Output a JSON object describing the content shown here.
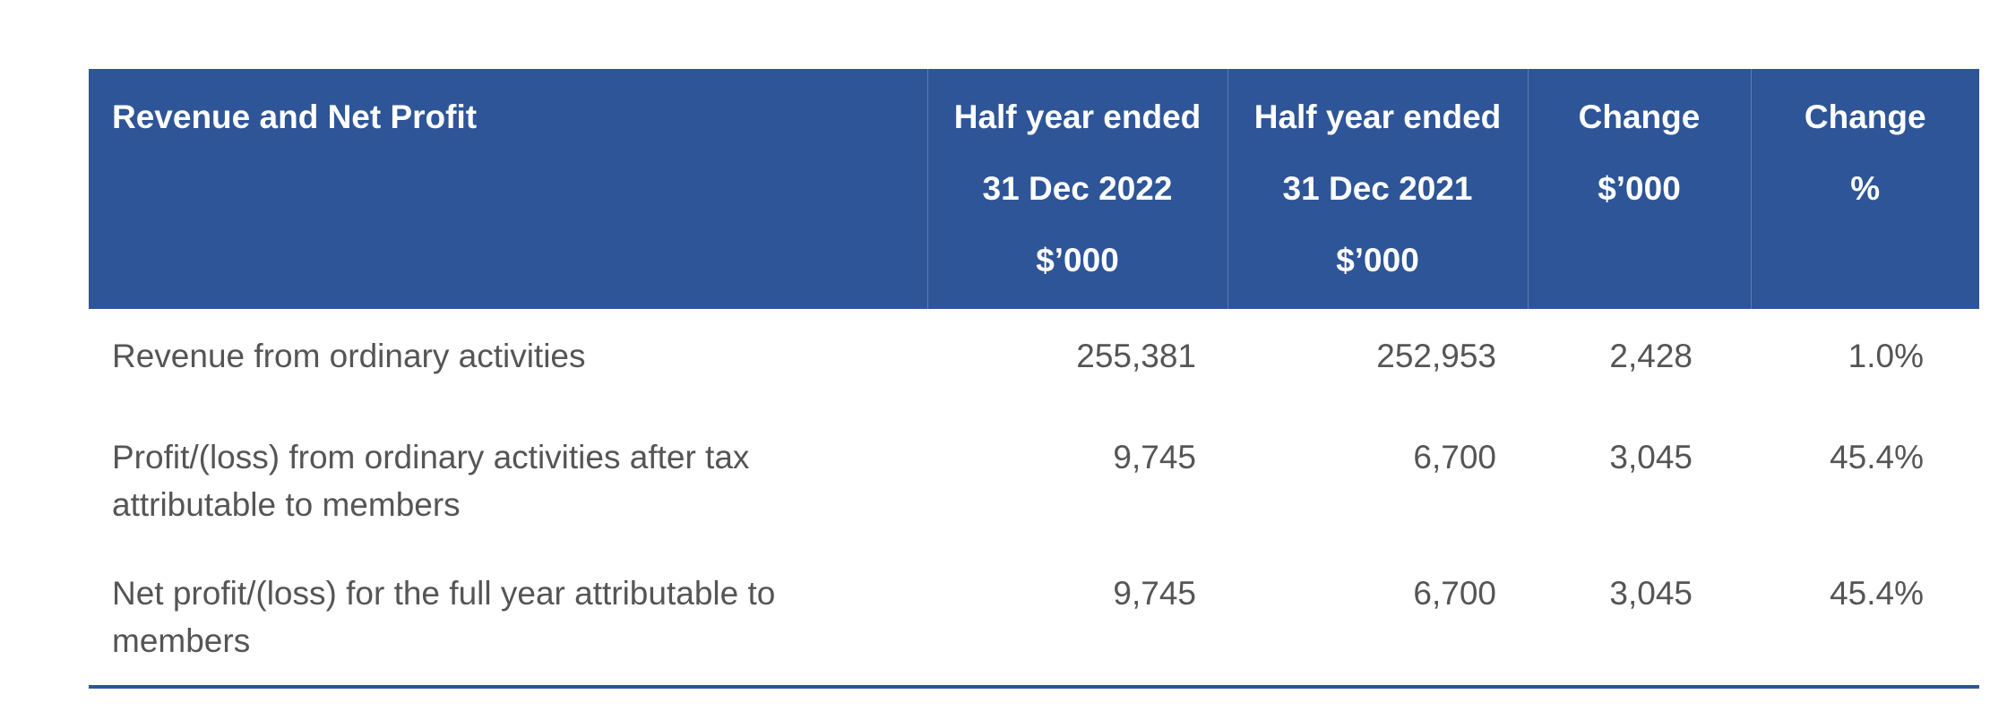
{
  "table": {
    "headers": [
      {
        "lines": [
          "Revenue and Net Profit"
        ]
      },
      {
        "lines": [
          "Half year ended",
          "31 Dec 2022",
          "$’000"
        ]
      },
      {
        "lines": [
          "Half year ended",
          "31 Dec 2021",
          "$’000"
        ]
      },
      {
        "lines": [
          "Change",
          "$’000"
        ]
      },
      {
        "lines": [
          "Change",
          "%"
        ]
      }
    ],
    "rows": [
      {
        "label": "Revenue from ordinary activities",
        "values": [
          "255,381",
          "252,953",
          "2,428",
          "1.0%"
        ]
      },
      {
        "label": "Profit/(loss) from ordinary activities after tax attributable to members",
        "values": [
          "9,745",
          "6,700",
          "3,045",
          "45.4%"
        ]
      },
      {
        "label": "Net profit/(loss) for the full year attributable to members",
        "values": [
          "9,745",
          "6,700",
          "3,045",
          "45.4%"
        ]
      }
    ]
  },
  "colors": {
    "header_bg": "#2e5597",
    "header_text": "#ffffff",
    "body_text": "#555555",
    "rule": "#2e5597"
  }
}
